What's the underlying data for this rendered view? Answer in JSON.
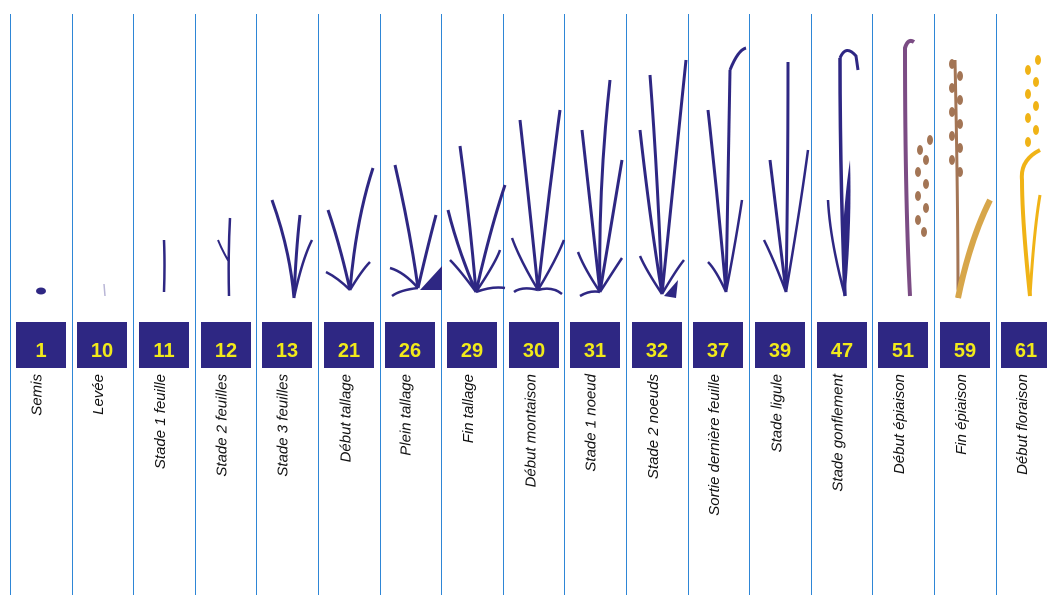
{
  "colors": {
    "plant": "#2e2783",
    "badge": "#2e2783",
    "badge_text": "#f1ea1a",
    "separator": "#2e86d6",
    "heading_mauve": "#7b4c84",
    "heading_brown": "#a37555",
    "flowering_gold": "#f0b316"
  },
  "stages": [
    {
      "code": "1",
      "label": "Semis"
    },
    {
      "code": "10",
      "label": "Levée"
    },
    {
      "code": "11",
      "label": "Stade 1 feuille"
    },
    {
      "code": "12",
      "label": "Stade 2 feuilles"
    },
    {
      "code": "13",
      "label": "Stade 3 feuilles"
    },
    {
      "code": "21",
      "label": "Début tallage"
    },
    {
      "code": "26",
      "label": "Plein tallage"
    },
    {
      "code": "29",
      "label": "Fin tallage"
    },
    {
      "code": "30",
      "label": "Début montaison"
    },
    {
      "code": "31",
      "label": "Stade 1 noeud"
    },
    {
      "code": "32",
      "label": "Stade 2 noeuds"
    },
    {
      "code": "37",
      "label": "Sortie  dernière feuille"
    },
    {
      "code": "39",
      "label": "Stade ligule"
    },
    {
      "code": "47",
      "label": "Stade gonflement"
    },
    {
      "code": "51",
      "label": "Début épiaison"
    },
    {
      "code": "59",
      "label": "Fin épiaison"
    },
    {
      "code": "61",
      "label": "Début floraison"
    }
  ]
}
